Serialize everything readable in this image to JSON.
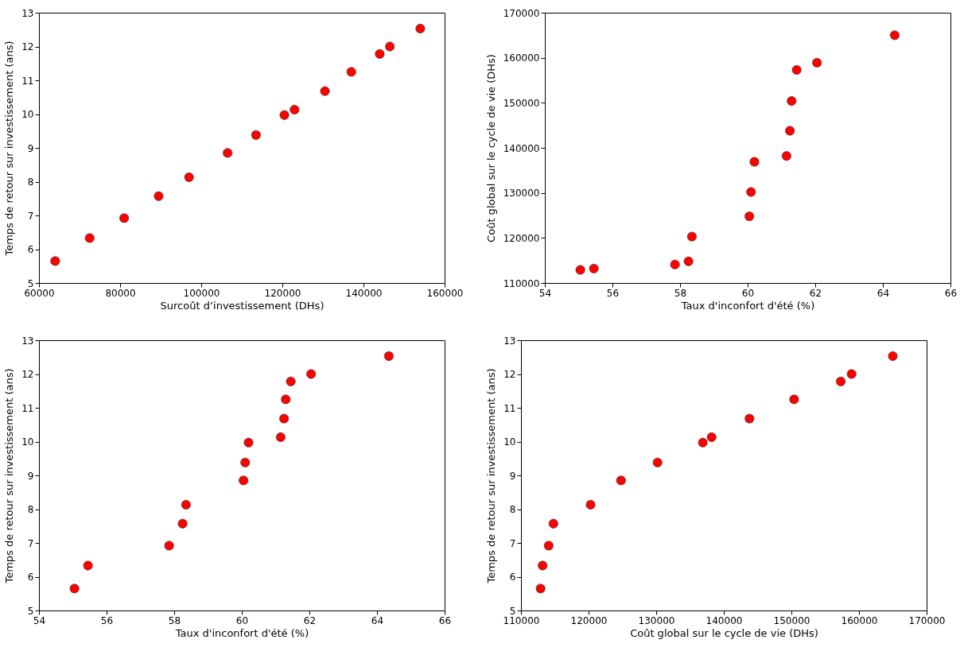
{
  "chart_data": [
    {
      "type": "scatter",
      "xlabel": "Surcoût d’investissement (DHs)",
      "ylabel": "Temps de retour sur investissement (ans)",
      "x": [
        64000,
        72500,
        81000,
        89500,
        97000,
        106500,
        113500,
        120500,
        123000,
        130500,
        137000,
        144000,
        146500,
        154000
      ],
      "series": [
        {
          "color": "#ff0000",
          "values": [
            5.65,
            6.33,
            6.92,
            7.57,
            8.13,
            8.85,
            9.38,
            9.97,
            10.13,
            10.68,
            11.25,
            11.78,
            12.0,
            12.53
          ]
        }
      ],
      "xlim": [
        60000,
        160000
      ],
      "xticks": [
        60000,
        80000,
        100000,
        120000,
        140000,
        160000
      ],
      "ylim": [
        5,
        13
      ],
      "yticks": [
        5,
        6,
        7,
        8,
        9,
        10,
        11,
        12,
        13
      ],
      "marker": "circle",
      "grid": false
    },
    {
      "type": "scatter",
      "xlabel": "Taux d'inconfort d'été (%)",
      "ylabel": "Coût global sur le cycle de vie (DHs)",
      "x": [
        55.05,
        55.45,
        57.85,
        58.25,
        58.35,
        60.05,
        60.1,
        60.2,
        61.15,
        61.25,
        61.3,
        61.45,
        62.05,
        64.35
      ],
      "series": [
        {
          "color": "#ff0000",
          "values": [
            112900,
            113200,
            114100,
            114800,
            120300,
            124800,
            130200,
            136900,
            138200,
            143800,
            150400,
            157300,
            158900,
            165000
          ]
        }
      ],
      "xlim": [
        54,
        66
      ],
      "xticks": [
        54,
        56,
        58,
        60,
        62,
        64,
        66
      ],
      "ylim": [
        110000,
        170000
      ],
      "yticks": [
        110000,
        120000,
        130000,
        140000,
        150000,
        160000,
        170000
      ],
      "marker": "circle",
      "grid": false
    },
    {
      "type": "scatter",
      "xlabel": "Taux d'inconfort d'été (%)",
      "ylabel": "Temps de retour sur investissement (ans)",
      "x": [
        55.05,
        55.45,
        57.85,
        58.25,
        58.35,
        60.05,
        60.1,
        60.2,
        61.15,
        61.25,
        61.3,
        61.45,
        62.05,
        64.35
      ],
      "series": [
        {
          "color": "#ff0000",
          "values": [
            5.65,
            6.33,
            6.92,
            7.57,
            8.13,
            8.85,
            9.38,
            9.97,
            10.13,
            10.68,
            11.25,
            11.78,
            12.0,
            12.53
          ]
        }
      ],
      "xlim": [
        54,
        66
      ],
      "xticks": [
        54,
        56,
        58,
        60,
        62,
        64,
        66
      ],
      "ylim": [
        5,
        13
      ],
      "yticks": [
        5,
        6,
        7,
        8,
        9,
        10,
        11,
        12,
        13
      ],
      "marker": "circle",
      "grid": false
    },
    {
      "type": "scatter",
      "xlabel": "Coût global sur le cycle de vie (DHs)",
      "ylabel": "Temps de retour sur investissement (ans)",
      "x": [
        112900,
        113200,
        114100,
        114800,
        120300,
        124800,
        130200,
        136900,
        138200,
        143800,
        150400,
        157300,
        158900,
        165000
      ],
      "series": [
        {
          "color": "#ff0000",
          "values": [
            5.65,
            6.33,
            6.92,
            7.57,
            8.13,
            8.85,
            9.38,
            9.97,
            10.13,
            10.68,
            11.25,
            11.78,
            12.0,
            12.53
          ]
        }
      ],
      "xlim": [
        110000,
        170000
      ],
      "xticks": [
        110000,
        120000,
        130000,
        140000,
        150000,
        160000,
        170000
      ],
      "ylim": [
        5,
        13
      ],
      "yticks": [
        5,
        6,
        7,
        8,
        9,
        10,
        11,
        12,
        13
      ],
      "marker": "circle",
      "grid": false
    }
  ]
}
